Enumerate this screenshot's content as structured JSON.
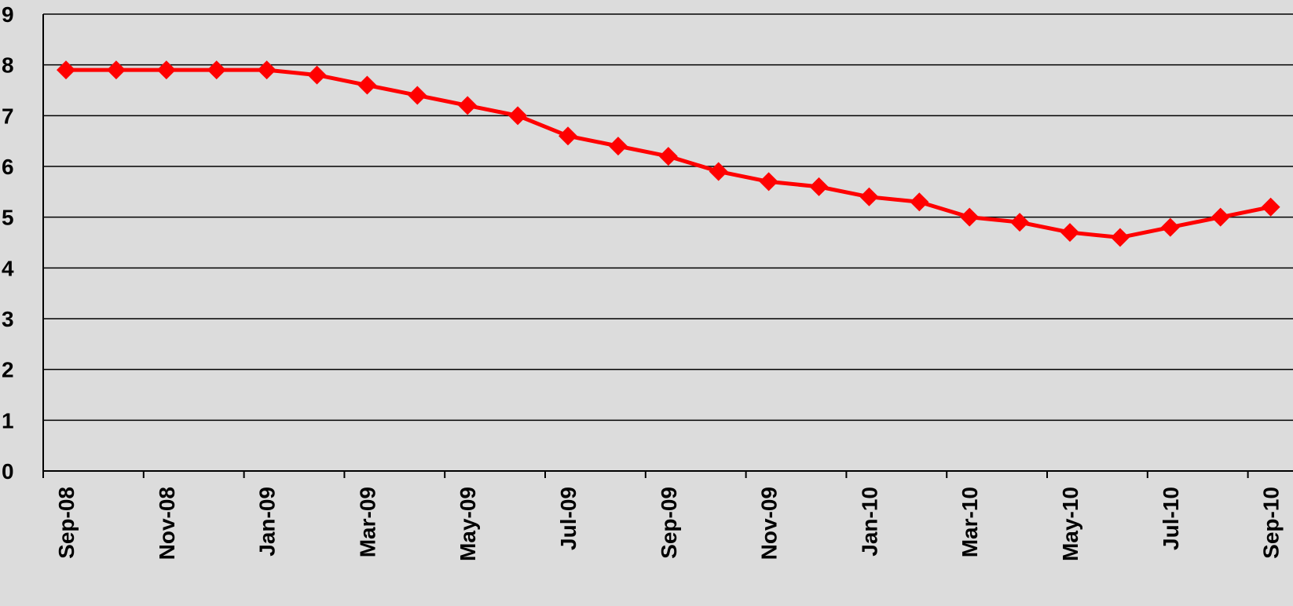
{
  "chart_data": {
    "type": "line",
    "title": "",
    "xlabel": "",
    "ylabel": "",
    "x": [
      "Sep-08",
      "Oct-08",
      "Nov-08",
      "Dec-08",
      "Jan-09",
      "Feb-09",
      "Mar-09",
      "Apr-09",
      "May-09",
      "Jun-09",
      "Jul-09",
      "Aug-09",
      "Sep-09",
      "Oct-09",
      "Nov-09",
      "Dec-09",
      "Jan-10",
      "Feb-10",
      "Mar-10",
      "Apr-10",
      "May-10",
      "Jun-10",
      "Jul-10",
      "Aug-10",
      "Sep-10"
    ],
    "x_tick_labels": [
      "Sep-08",
      "Nov-08",
      "Jan-09",
      "Mar-09",
      "May-09",
      "Jul-09",
      "Sep-09",
      "Nov-09",
      "Jan-10",
      "Mar-10",
      "May-10",
      "Jul-10",
      "Sep-10"
    ],
    "series": [
      {
        "values": [
          7.9,
          7.9,
          7.9,
          7.9,
          7.9,
          7.8,
          7.6,
          7.4,
          7.2,
          7.0,
          6.6,
          6.4,
          6.2,
          5.9,
          5.7,
          5.6,
          5.4,
          5.3,
          5.0,
          4.9,
          4.7,
          4.6,
          4.8,
          5.0,
          5.2
        ],
        "color": "#ff0000",
        "marker": "diamond"
      }
    ],
    "ylim": [
      0,
      9
    ],
    "y_ticks": [
      "0",
      "1",
      "2",
      "3",
      "4",
      "5",
      "6",
      "7",
      "8",
      "9"
    ],
    "grid": true,
    "background_color": "#dcdcdc",
    "grid_color": "#000000"
  }
}
